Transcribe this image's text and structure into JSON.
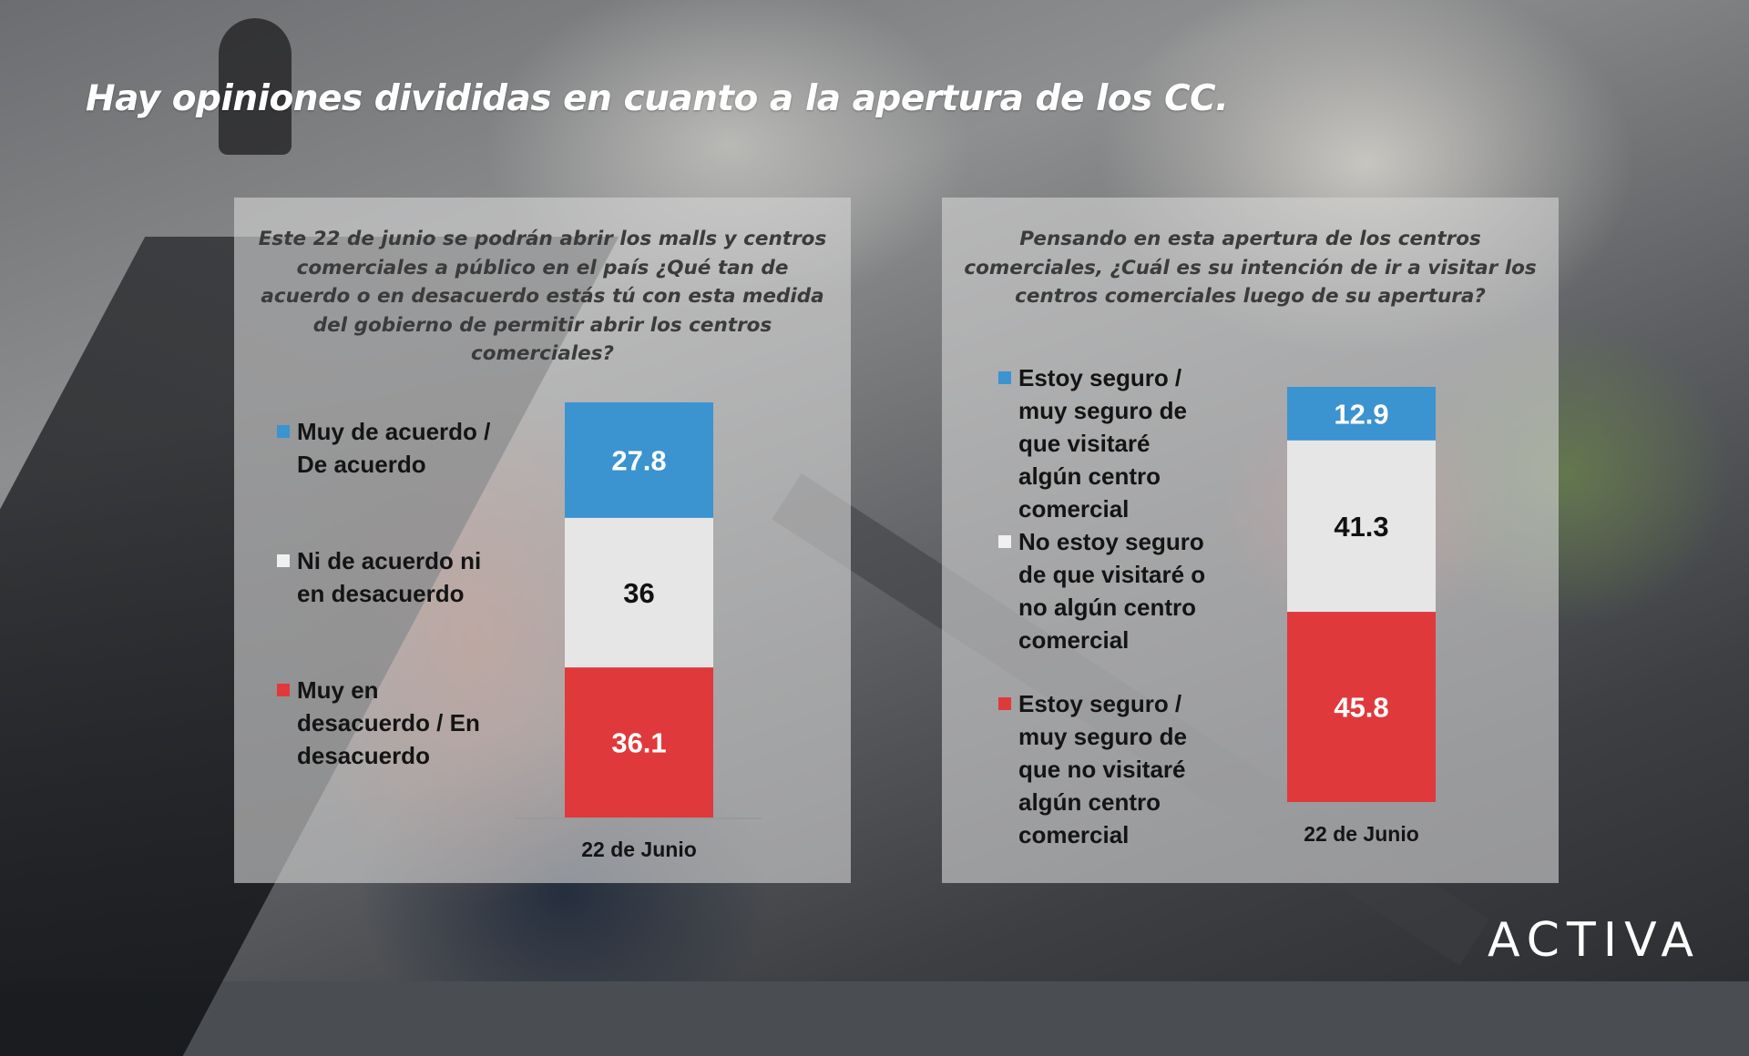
{
  "title": "Hay opiniones divididas en cuanto a la apertura de los CC.",
  "logo_text": "ACTIVA",
  "colors": {
    "blue": "#3b93d0",
    "gray": "#e6e6e6",
    "red": "#e0393c"
  },
  "chart_data": [
    {
      "type": "bar",
      "stacked": true,
      "question": "Este 22 de junio se podrán abrir los malls y centros comerciales a público en el país ¿Qué tan de acuerdo o en desacuerdo estás tú con esta medida del gobierno de permitir abrir los centros comerciales?",
      "categories": [
        "22 de Junio"
      ],
      "series": [
        {
          "name": "Muy de acuerdo / De acuerdo",
          "values": [
            27.8
          ],
          "color": "#3b93d0"
        },
        {
          "name": "Ni de acuerdo ni en desacuerdo",
          "values": [
            36
          ],
          "color": "#e6e6e6"
        },
        {
          "name": "Muy en desacuerdo / En desacuerdo",
          "values": [
            36.1
          ],
          "color": "#e0393c"
        }
      ],
      "data_labels": [
        "27.8",
        "36",
        "36.1"
      ]
    },
    {
      "type": "bar",
      "stacked": true,
      "question": "Pensando en esta apertura de los centros comerciales, ¿Cuál es su intención de ir a visitar los centros comerciales luego de su apertura?",
      "categories": [
        "22 de Junio"
      ],
      "series": [
        {
          "name": "Estoy seguro / muy seguro de que visitaré algún centro comercial",
          "values": [
            12.9
          ],
          "color": "#3b93d0"
        },
        {
          "name": "No estoy seguro de que visitaré o no algún centro comercial",
          "values": [
            41.3
          ],
          "color": "#e6e6e6"
        },
        {
          "name": "Estoy seguro / muy seguro de que no visitaré algún centro comercial",
          "values": [
            45.8
          ],
          "color": "#e0393c"
        }
      ],
      "data_labels": [
        "12.9",
        "41.3",
        "45.8"
      ]
    }
  ]
}
